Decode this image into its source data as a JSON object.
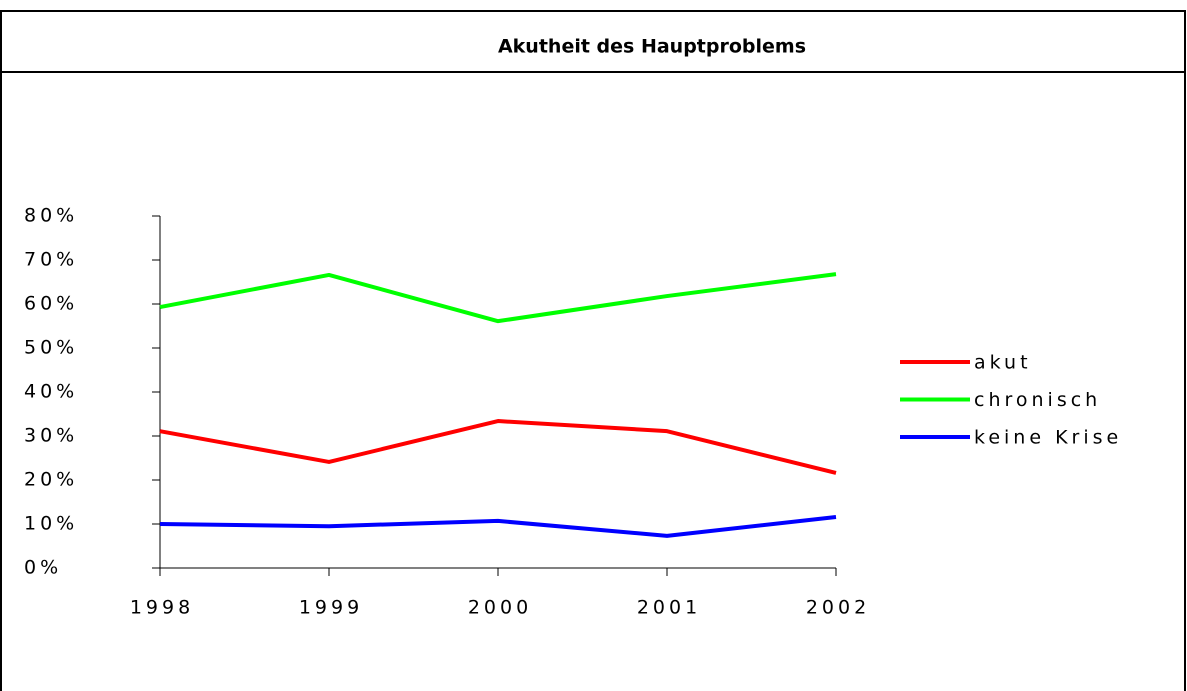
{
  "chart_data": {
    "type": "line",
    "title": "Akutheit des Hauptproblems",
    "categories": [
      "1998",
      "1999",
      "2000",
      "2001",
      "2002"
    ],
    "series": [
      {
        "name": "akut",
        "color": "#ff0000",
        "values": [
          31.1,
          24.1,
          33.4,
          31.1,
          21.6
        ]
      },
      {
        "name": "chronisch",
        "color": "#00ff00",
        "values": [
          59.3,
          66.6,
          56.1,
          61.8,
          66.8
        ]
      },
      {
        "name": "keine Krise",
        "color": "#0000ff",
        "values": [
          10.0,
          9.5,
          10.7,
          7.3,
          11.6
        ]
      }
    ],
    "ylim": [
      0,
      80
    ],
    "yticks": [
      {
        "value": 0,
        "label": "0%"
      },
      {
        "value": 10,
        "label": "10%"
      },
      {
        "value": 20,
        "label": "20%"
      },
      {
        "value": 30,
        "label": "30%"
      },
      {
        "value": 40,
        "label": "40%"
      },
      {
        "value": 50,
        "label": "50%"
      },
      {
        "value": 60,
        "label": "60%"
      },
      {
        "value": 70,
        "label": "70%"
      },
      {
        "value": 80,
        "label": "80%"
      }
    ],
    "legend": "right"
  }
}
